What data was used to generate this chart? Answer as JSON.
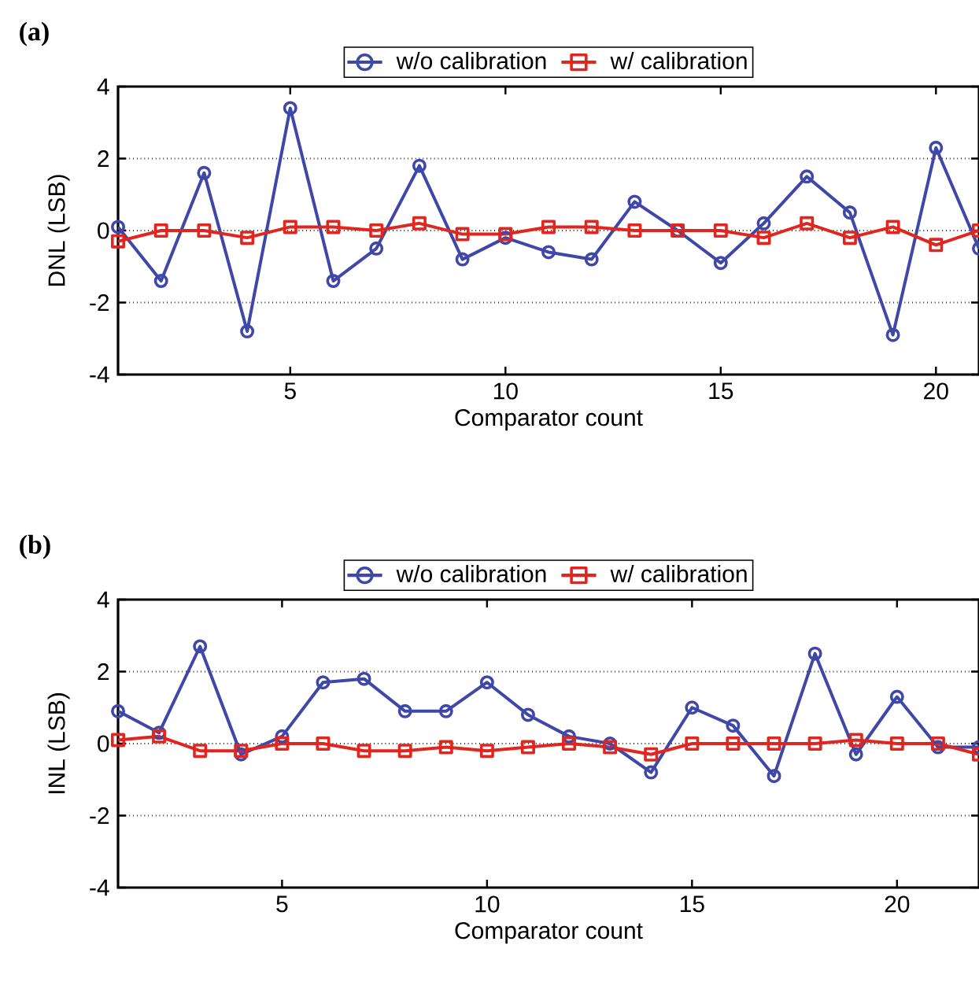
{
  "chart_data": [
    {
      "type": "line",
      "title": "**(a)**",
      "xlabel": "Comparator count",
      "ylabel": "DNL (LSB)",
      "x": [
        1,
        2,
        3,
        4,
        5,
        6,
        7,
        8,
        9,
        10,
        11,
        12,
        13,
        14,
        15,
        16,
        17,
        18,
        19,
        20,
        21
      ],
      "xlim": [
        1,
        21
      ],
      "xticks": [
        5,
        10,
        15,
        20
      ],
      "ylim": [
        -4,
        4
      ],
      "yticks": [
        -4,
        -2,
        0,
        2,
        4
      ],
      "grid": "y",
      "legend": "top",
      "series": [
        {
          "name": "w/o calibration",
          "color": "#3f48a8",
          "marker": "circle",
          "values": [
            0.1,
            -1.4,
            1.6,
            -2.8,
            3.4,
            -1.4,
            -0.5,
            1.8,
            -0.8,
            -0.2,
            -0.6,
            -0.8,
            0.8,
            0.0,
            -0.9,
            0.2,
            1.5,
            0.5,
            -2.9,
            2.3,
            -0.5
          ]
        },
        {
          "name": "w/ calibration",
          "color": "#e0261f",
          "marker": "square",
          "values": [
            -0.3,
            0.0,
            0.0,
            -0.2,
            0.1,
            0.1,
            0.0,
            0.2,
            -0.1,
            -0.1,
            0.1,
            0.1,
            0.0,
            0.0,
            0.0,
            -0.2,
            0.2,
            -0.2,
            0.1,
            -0.4,
            0.0
          ]
        }
      ]
    },
    {
      "type": "line",
      "title": "**(b)**",
      "xlabel": "Comparator count",
      "ylabel": "INL (LSB)",
      "x": [
        1,
        2,
        3,
        4,
        5,
        6,
        7,
        8,
        9,
        10,
        11,
        12,
        13,
        14,
        15,
        16,
        17,
        18,
        19,
        20,
        21,
        22
      ],
      "xlim": [
        1,
        22
      ],
      "xticks": [
        5,
        10,
        15,
        20
      ],
      "ylim": [
        -4,
        4
      ],
      "yticks": [
        -4,
        -2,
        0,
        2,
        4
      ],
      "grid": "y",
      "legend": "top",
      "series": [
        {
          "name": "w/o calibration",
          "color": "#3f48a8",
          "marker": "circle",
          "values": [
            0.9,
            0.3,
            2.7,
            -0.3,
            0.2,
            1.7,
            1.8,
            0.9,
            0.9,
            1.7,
            0.8,
            0.2,
            0.0,
            -0.8,
            1.0,
            0.5,
            -0.9,
            2.5,
            -0.3,
            1.3,
            -0.1,
            -0.1
          ]
        },
        {
          "name": "w/ calibration",
          "color": "#e0261f",
          "marker": "square",
          "values": [
            0.1,
            0.2,
            -0.2,
            -0.2,
            0.0,
            0.0,
            -0.2,
            -0.2,
            -0.1,
            -0.2,
            -0.1,
            0.0,
            -0.1,
            -0.3,
            0.0,
            0.0,
            0.0,
            0.0,
            0.1,
            0.0,
            0.0,
            -0.3
          ]
        }
      ]
    }
  ]
}
